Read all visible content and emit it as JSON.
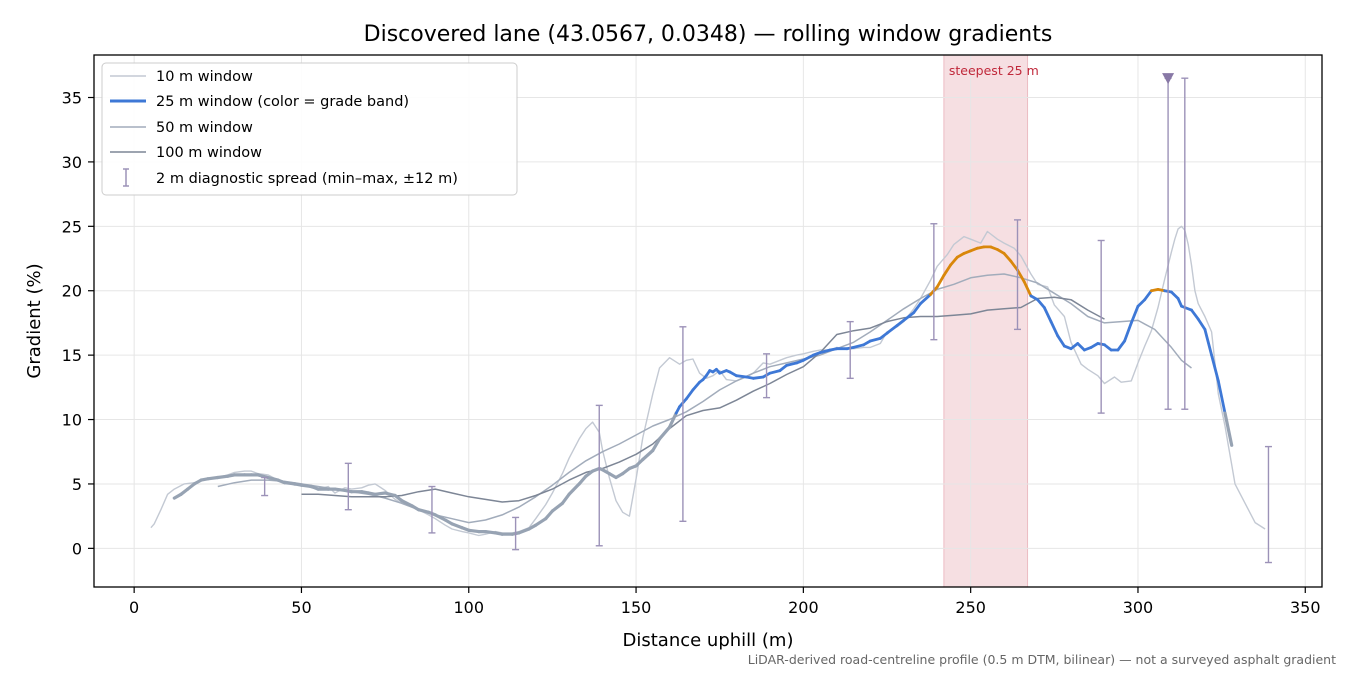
{
  "chart_data": {
    "type": "line",
    "title": "Discovered lane (43.0567, 0.0348) — rolling window gradients",
    "xlabel": "Distance uphill (m)",
    "ylabel": "Gradient (%)",
    "xlim": [
      -12,
      355
    ],
    "ylim": [
      -3,
      38.3
    ],
    "xticks": [
      0,
      50,
      100,
      150,
      200,
      250,
      300,
      350
    ],
    "yticks": [
      0,
      5,
      10,
      15,
      20,
      25,
      30,
      35
    ],
    "grid": true,
    "legend_position": "top-left",
    "footnote": "LiDAR-derived road-centreline profile (0.5 m DTM, bilinear) — not a surveyed asphalt gradient",
    "highlight": {
      "label": "steepest 25 m",
      "x_range": [
        242,
        267
      ],
      "color": "#f6dfe2"
    },
    "marker": {
      "x": 309,
      "y": 36.5,
      "shape": "triangle-down",
      "color": "#8878a6"
    },
    "grade_band_colors": {
      "low": "#97a3b3",
      "mid": "#3e78d6",
      "high": "#d9870b"
    },
    "series": [
      {
        "name": "10 m window",
        "color": "#c3c9d3",
        "x": [
          5,
          6,
          8,
          10,
          12,
          15,
          18,
          20,
          22,
          25,
          28,
          30,
          33,
          35,
          37,
          40,
          43,
          45,
          48,
          50,
          53,
          55,
          58,
          60,
          63,
          65,
          68,
          70,
          72,
          75,
          78,
          80,
          83,
          85,
          88,
          90,
          93,
          95,
          98,
          100,
          103,
          105,
          108,
          110,
          113,
          115,
          118,
          120,
          123,
          125,
          128,
          130,
          133,
          135,
          137,
          139,
          140,
          142,
          144,
          146,
          148,
          150,
          152,
          155,
          157,
          160,
          163,
          165,
          167,
          169,
          171,
          173,
          175,
          177,
          180,
          183,
          185,
          188,
          190,
          193,
          195,
          198,
          200,
          203,
          205,
          208,
          210,
          213,
          215,
          218,
          220,
          223,
          225,
          228,
          230,
          233,
          235,
          238,
          240,
          243,
          245,
          248,
          250,
          253,
          255,
          258,
          260,
          263,
          265,
          268,
          270,
          273,
          275,
          278,
          280,
          283,
          285,
          288,
          290,
          293,
          295,
          298,
          300,
          302,
          304,
          306,
          308,
          310,
          311,
          312,
          313,
          314,
          315,
          316,
          317,
          318,
          320,
          322,
          324,
          326,
          327,
          328,
          329,
          331,
          333,
          335,
          338
        ],
        "y": [
          1.6,
          1.9,
          3.0,
          4.2,
          4.6,
          5.0,
          5.1,
          5.3,
          5.4,
          5.5,
          5.7,
          5.9,
          6.0,
          6.0,
          5.8,
          5.7,
          5.3,
          5.2,
          4.9,
          5.0,
          4.7,
          4.6,
          4.8,
          4.3,
          4.7,
          4.6,
          4.7,
          4.9,
          5.0,
          4.5,
          3.8,
          3.5,
          3.2,
          3.0,
          2.6,
          2.3,
          1.8,
          1.5,
          1.3,
          1.2,
          1.0,
          1.1,
          1.3,
          1.2,
          1.2,
          1.3,
          1.6,
          2.3,
          3.4,
          4.3,
          5.8,
          7.0,
          8.5,
          9.3,
          9.8,
          9.0,
          7.6,
          5.5,
          3.7,
          2.8,
          2.5,
          5.4,
          8.6,
          12.0,
          14.0,
          14.8,
          14.3,
          14.6,
          14.7,
          13.6,
          13.2,
          13.4,
          13.8,
          13.1,
          13.0,
          13.3,
          13.6,
          14.4,
          14.3,
          14.6,
          14.8,
          15.0,
          15.1,
          15.3,
          15.4,
          15.4,
          15.6,
          15.5,
          15.5,
          15.6,
          15.6,
          15.9,
          16.8,
          17.2,
          17.6,
          18.6,
          19.4,
          20.8,
          21.9,
          22.8,
          23.6,
          24.2,
          24.0,
          23.7,
          24.6,
          24.0,
          23.7,
          23.3,
          22.7,
          21.3,
          20.5,
          20.3,
          18.9,
          18.0,
          16.0,
          14.3,
          13.9,
          13.4,
          12.8,
          13.3,
          12.9,
          13.0,
          14.4,
          15.7,
          16.9,
          18.7,
          20.9,
          23.0,
          24.0,
          24.8,
          25.0,
          24.7,
          23.6,
          22.0,
          20.0,
          19.0,
          18.0,
          16.8,
          12.0,
          9.5,
          8.0,
          6.5,
          5.0,
          4.0,
          3.0,
          2.0,
          1.5
        ]
      },
      {
        "name": "25 m window (color = grade band)",
        "color": "#3e78d6",
        "x": [
          12,
          14,
          16,
          18,
          20,
          22,
          25,
          28,
          30,
          33,
          35,
          37,
          40,
          43,
          45,
          48,
          50,
          53,
          55,
          58,
          60,
          63,
          65,
          68,
          70,
          72,
          75,
          78,
          80,
          83,
          85,
          88,
          90,
          93,
          95,
          98,
          100,
          103,
          105,
          108,
          110,
          113,
          115,
          118,
          120,
          123,
          125,
          128,
          130,
          133,
          135,
          137,
          139,
          140,
          142,
          144,
          146,
          148,
          150,
          152,
          155,
          157,
          160,
          162,
          163,
          165,
          167,
          169,
          170,
          171,
          172,
          173,
          174,
          175,
          177,
          178,
          180,
          183,
          185,
          188,
          190,
          193,
          195,
          198,
          200,
          203,
          205,
          208,
          210,
          213,
          215,
          218,
          220,
          223,
          225,
          228,
          230,
          233,
          235,
          238,
          240,
          242,
          244,
          246,
          248,
          250,
          252,
          254,
          256,
          258,
          260,
          262,
          264,
          266,
          268,
          270,
          272,
          274,
          276,
          278,
          280,
          282,
          284,
          286,
          288,
          290,
          292,
          294,
          296,
          298,
          300,
          302,
          304,
          306,
          308,
          310,
          312,
          313,
          314,
          316,
          318,
          320,
          322,
          324,
          326,
          328
        ],
        "y": [
          3.9,
          4.2,
          4.6,
          5.0,
          5.3,
          5.4,
          5.5,
          5.6,
          5.7,
          5.7,
          5.7,
          5.7,
          5.5,
          5.3,
          5.1,
          5.0,
          4.9,
          4.8,
          4.6,
          4.6,
          4.6,
          4.5,
          4.4,
          4.4,
          4.3,
          4.2,
          4.3,
          4.1,
          3.7,
          3.3,
          3.0,
          2.8,
          2.6,
          2.2,
          1.9,
          1.6,
          1.4,
          1.3,
          1.3,
          1.2,
          1.1,
          1.1,
          1.2,
          1.5,
          1.8,
          2.3,
          2.9,
          3.5,
          4.2,
          5.0,
          5.6,
          6.0,
          6.2,
          6.1,
          5.8,
          5.5,
          5.8,
          6.2,
          6.4,
          6.9,
          7.6,
          8.5,
          9.4,
          10.5,
          11.0,
          11.6,
          12.3,
          12.9,
          13.1,
          13.4,
          13.8,
          13.7,
          13.9,
          13.6,
          13.8,
          13.7,
          13.4,
          13.3,
          13.2,
          13.3,
          13.6,
          13.8,
          14.2,
          14.4,
          14.6,
          15.0,
          15.2,
          15.4,
          15.5,
          15.5,
          15.6,
          15.8,
          16.1,
          16.3,
          16.7,
          17.3,
          17.7,
          18.3,
          19.0,
          19.7,
          20.3,
          21.2,
          22.0,
          22.6,
          22.9,
          23.1,
          23.3,
          23.4,
          23.4,
          23.2,
          22.9,
          22.3,
          21.6,
          20.7,
          19.6,
          19.3,
          18.7,
          17.6,
          16.5,
          15.7,
          15.5,
          15.9,
          15.4,
          15.6,
          15.9,
          15.8,
          15.4,
          15.4,
          16.1,
          17.5,
          18.8,
          19.3,
          20.0,
          20.1,
          20.0,
          19.9,
          19.4,
          18.8,
          18.7,
          18.5,
          17.8,
          17.0,
          15.0,
          13.0,
          10.5,
          8.0
        ]
      },
      {
        "name": "50 m window",
        "color": "#a2acbb",
        "x": [
          25,
          30,
          35,
          40,
          45,
          50,
          55,
          60,
          65,
          70,
          75,
          80,
          85,
          90,
          95,
          100,
          105,
          110,
          115,
          120,
          125,
          130,
          135,
          140,
          145,
          150,
          155,
          160,
          165,
          170,
          175,
          180,
          185,
          190,
          195,
          200,
          205,
          210,
          215,
          220,
          225,
          230,
          235,
          240,
          245,
          250,
          255,
          260,
          265,
          270,
          275,
          280,
          285,
          290,
          295,
          300,
          305,
          310,
          313,
          316
        ],
        "y": [
          4.8,
          5.1,
          5.3,
          5.3,
          5.2,
          5.0,
          4.8,
          4.6,
          4.4,
          4.2,
          3.9,
          3.5,
          3.0,
          2.6,
          2.3,
          2.0,
          2.2,
          2.6,
          3.2,
          4.0,
          4.9,
          5.9,
          6.8,
          7.5,
          8.1,
          8.8,
          9.5,
          10.0,
          10.6,
          11.4,
          12.3,
          13.0,
          13.6,
          14.1,
          14.4,
          14.7,
          15.0,
          15.5,
          16.0,
          16.8,
          17.7,
          18.6,
          19.4,
          20.1,
          20.5,
          21.0,
          21.2,
          21.3,
          21.0,
          20.6,
          19.8,
          19.0,
          18.0,
          17.5,
          17.6,
          17.7,
          17.0,
          15.6,
          14.6,
          14.0
        ]
      },
      {
        "name": "100 m window",
        "color": "#7d8696",
        "x": [
          50,
          55,
          60,
          65,
          70,
          75,
          80,
          85,
          90,
          95,
          100,
          105,
          110,
          115,
          120,
          125,
          130,
          135,
          140,
          145,
          150,
          155,
          160,
          165,
          170,
          175,
          180,
          185,
          190,
          195,
          200,
          205,
          210,
          215,
          220,
          225,
          230,
          235,
          240,
          245,
          250,
          255,
          260,
          265,
          270,
          275,
          280,
          285,
          290
        ],
        "y": [
          4.2,
          4.2,
          4.1,
          4.0,
          4.0,
          4.0,
          4.1,
          4.4,
          4.6,
          4.3,
          4.0,
          3.8,
          3.6,
          3.7,
          4.1,
          4.6,
          5.3,
          5.9,
          6.2,
          6.7,
          7.3,
          8.1,
          9.3,
          10.3,
          10.7,
          10.9,
          11.5,
          12.2,
          12.8,
          13.5,
          14.1,
          15.2,
          16.6,
          16.9,
          17.1,
          17.6,
          17.9,
          18.0,
          18.0,
          18.1,
          18.2,
          18.5,
          18.6,
          18.7,
          19.4,
          19.5,
          19.3,
          18.5,
          17.8
        ]
      },
      {
        "name": "2 m diagnostic spread (min–max, ±12 m)",
        "color": "#9c92b8",
        "points": [
          {
            "x": 39,
            "min": 4.1,
            "max": 5.5
          },
          {
            "x": 64,
            "min": 3.0,
            "max": 6.6
          },
          {
            "x": 89,
            "min": 1.2,
            "max": 4.8
          },
          {
            "x": 114,
            "min": -0.1,
            "max": 2.4
          },
          {
            "x": 139,
            "min": 0.2,
            "max": 11.1
          },
          {
            "x": 164,
            "min": 2.1,
            "max": 17.2
          },
          {
            "x": 189,
            "min": 11.7,
            "max": 15.1
          },
          {
            "x": 214,
            "min": 13.2,
            "max": 17.6
          },
          {
            "x": 239,
            "min": 16.2,
            "max": 25.2
          },
          {
            "x": 264,
            "min": 17.0,
            "max": 25.5
          },
          {
            "x": 289,
            "min": 10.5,
            "max": 23.9
          },
          {
            "x": 309,
            "min": 10.8,
            "max": 36.5
          },
          {
            "x": 314,
            "min": 10.8,
            "max": 36.5
          },
          {
            "x": 339,
            "min": -1.1,
            "max": 7.9
          }
        ]
      }
    ]
  }
}
